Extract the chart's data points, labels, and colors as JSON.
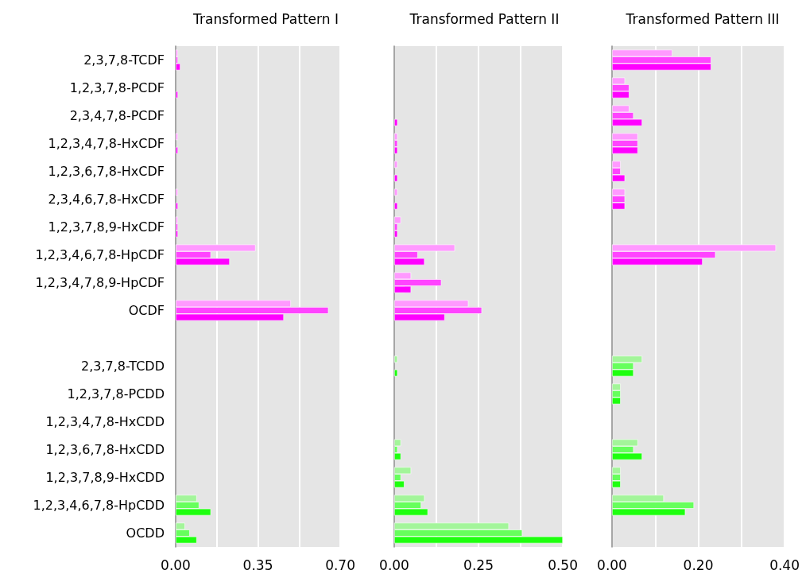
{
  "chart_data": [
    {
      "type": "bar",
      "orientation": "horizontal",
      "title": "Transformed Pattern I",
      "categories": [
        "2,3,7,8-TCDF",
        "1,2,3,7,8-PCDF",
        "2,3,4,7,8-PCDF",
        "1,2,3,4,7,8-HxCDF",
        "1,2,3,6,7,8-HxCDF",
        "2,3,4,6,7,8-HxCDF",
        "1,2,3,7,8,9-HxCDF",
        "1,2,3,4,6,7,8-HpCDF",
        "1,2,3,4,7,8,9-HpCDF",
        "OCDF",
        null,
        "2,3,7,8-TCDD",
        "1,2,3,7,8-PCDD",
        "1,2,3,4,7,8-HxCDD",
        "1,2,3,6,7,8-HxCDD",
        "1,2,3,7,8,9-HxCDD",
        "1,2,3,4,6,7,8-HpCDD",
        "OCDD"
      ],
      "series": [
        {
          "colors": [
            "#ff99ff",
            "#ff99ff",
            "#ff99ff",
            "#ff99ff",
            "#ff99ff",
            "#ff99ff",
            "#ff99ff",
            "#ff99ff",
            "#ff99ff",
            "#ff99ff",
            "#ff99ff",
            "#a3f59a",
            "#a3f59a",
            "#a3f59a",
            "#a3f59a",
            "#a3f59a",
            "#a3f59a",
            "#a3f59a"
          ],
          "values": [
            0.01,
            null,
            null,
            0.01,
            null,
            0.01,
            0.01,
            0.34,
            null,
            0.49,
            null,
            null,
            null,
            null,
            null,
            null,
            0.09,
            0.04
          ]
        },
        {
          "colors": [
            "#ff44ff",
            "#ff44ff",
            "#ff44ff",
            "#ff44ff",
            "#ff44ff",
            "#ff44ff",
            "#ff44ff",
            "#ff44ff",
            "#ff44ff",
            "#ff44ff",
            "#ff44ff",
            "#66ff5c",
            "#66ff5c",
            "#66ff5c",
            "#66ff5c",
            "#66ff5c",
            "#66ff5c",
            "#66ff5c"
          ],
          "values": [
            0.01,
            null,
            null,
            null,
            null,
            null,
            0.01,
            0.15,
            null,
            0.65,
            null,
            null,
            null,
            null,
            null,
            null,
            0.1,
            0.06
          ]
        },
        {
          "colors": [
            "#ff00ff",
            "#ff00ff",
            "#ff00ff",
            "#ff00ff",
            "#ff00ff",
            "#ff00ff",
            "#ff00ff",
            "#ff00ff",
            "#ff00ff",
            "#ff00ff",
            "#ff00ff",
            "#1eff0f",
            "#1eff0f",
            "#1eff0f",
            "#1eff0f",
            "#1eff0f",
            "#1eff0f",
            "#1eff0f"
          ],
          "values": [
            0.02,
            0.01,
            null,
            0.01,
            null,
            0.01,
            0.01,
            0.23,
            null,
            0.46,
            null,
            null,
            null,
            null,
            null,
            null,
            0.15,
            0.09
          ]
        }
      ],
      "xlim": [
        0,
        0.7
      ],
      "xticks": [
        {
          "value": 0,
          "label": "0.00"
        },
        {
          "value": 0.175,
          "label": null
        },
        {
          "value": 0.35,
          "label": "0.35"
        },
        {
          "value": 0.525,
          "label": null
        },
        {
          "value": 0.7,
          "label": "0.70"
        }
      ],
      "grid": "x"
    },
    {
      "type": "bar",
      "orientation": "horizontal",
      "title": "Transformed Pattern II",
      "categories": [
        null,
        null,
        null,
        null,
        null,
        null,
        null,
        null,
        null,
        null,
        null,
        null,
        null,
        null,
        null,
        null,
        null,
        null
      ],
      "series": [
        {
          "colors": [
            "#ff99ff",
            "#ff99ff",
            "#ff99ff",
            "#ff99ff",
            "#ff99ff",
            "#ff99ff",
            "#ff99ff",
            "#ff99ff",
            "#ff99ff",
            "#ff99ff",
            "#ff99ff",
            "#a3f59a",
            "#a3f59a",
            "#a3f59a",
            "#a3f59a",
            "#a3f59a",
            "#a3f59a",
            "#a3f59a"
          ],
          "values": [
            null,
            null,
            null,
            0.01,
            0.01,
            0.01,
            0.02,
            0.18,
            0.05,
            0.22,
            null,
            0.01,
            null,
            null,
            0.02,
            0.05,
            0.09,
            0.34
          ]
        },
        {
          "colors": [
            "#ff44ff",
            "#ff44ff",
            "#ff44ff",
            "#ff44ff",
            "#ff44ff",
            "#ff44ff",
            "#ff44ff",
            "#ff44ff",
            "#ff44ff",
            "#ff44ff",
            "#ff44ff",
            "#66ff5c",
            "#66ff5c",
            "#66ff5c",
            "#66ff5c",
            "#66ff5c",
            "#66ff5c",
            "#66ff5c"
          ],
          "values": [
            null,
            null,
            null,
            0.01,
            null,
            null,
            0.01,
            0.07,
            0.14,
            0.26,
            null,
            null,
            null,
            null,
            0.01,
            0.02,
            0.08,
            0.38
          ]
        },
        {
          "colors": [
            "#ff00ff",
            "#ff00ff",
            "#ff00ff",
            "#ff00ff",
            "#ff00ff",
            "#ff00ff",
            "#ff00ff",
            "#ff00ff",
            "#ff00ff",
            "#ff00ff",
            "#ff00ff",
            "#1eff0f",
            "#1eff0f",
            "#1eff0f",
            "#1eff0f",
            "#1eff0f",
            "#1eff0f",
            "#1eff0f"
          ],
          "values": [
            null,
            null,
            0.01,
            0.01,
            0.01,
            0.01,
            0.01,
            0.09,
            0.05,
            0.15,
            null,
            0.01,
            null,
            null,
            0.02,
            0.03,
            0.1,
            0.5
          ]
        }
      ],
      "xlim": [
        0,
        0.5
      ],
      "xticks": [
        {
          "value": 0,
          "label": "0.00"
        },
        {
          "value": 0.125,
          "label": null
        },
        {
          "value": 0.25,
          "label": "0.25"
        },
        {
          "value": 0.375,
          "label": null
        },
        {
          "value": 0.5,
          "label": "0.50"
        }
      ],
      "grid": "x",
      "tick_labels": "x"
    },
    {
      "type": "bar",
      "orientation": "horizontal",
      "title": "Transformed Pattern III",
      "categories": [
        null,
        null,
        null,
        null,
        null,
        null,
        null,
        null,
        null,
        null,
        null,
        null,
        null,
        null,
        null,
        null,
        null,
        null
      ],
      "series": [
        {
          "colors": [
            "#ff99ff",
            "#ff99ff",
            "#ff99ff",
            "#ff99ff",
            "#ff99ff",
            "#ff99ff",
            "#ff99ff",
            "#ff99ff",
            "#ff99ff",
            "#ff99ff",
            "#ff99ff",
            "#a3f59a",
            "#a3f59a",
            "#a3f59a",
            "#a3f59a",
            "#a3f59a",
            "#a3f59a",
            "#a3f59a"
          ],
          "values": [
            0.14,
            0.03,
            0.04,
            0.06,
            0.02,
            0.03,
            null,
            0.38,
            null,
            null,
            null,
            0.07,
            0.02,
            null,
            0.06,
            0.02,
            0.12,
            null
          ]
        },
        {
          "colors": [
            "#ff44ff",
            "#ff44ff",
            "#ff44ff",
            "#ff44ff",
            "#ff44ff",
            "#ff44ff",
            "#ff44ff",
            "#ff44ff",
            "#ff44ff",
            "#ff44ff",
            "#ff44ff",
            "#66ff5c",
            "#66ff5c",
            "#66ff5c",
            "#66ff5c",
            "#66ff5c",
            "#66ff5c",
            "#66ff5c"
          ],
          "values": [
            0.23,
            0.04,
            0.05,
            0.06,
            0.02,
            0.03,
            null,
            0.24,
            null,
            null,
            null,
            0.05,
            0.02,
            null,
            0.05,
            0.02,
            0.19,
            null
          ]
        },
        {
          "colors": [
            "#ff00ff",
            "#ff00ff",
            "#ff00ff",
            "#ff00ff",
            "#ff00ff",
            "#ff00ff",
            "#ff00ff",
            "#ff00ff",
            "#ff00ff",
            "#ff00ff",
            "#ff00ff",
            "#1eff0f",
            "#1eff0f",
            "#1eff0f",
            "#1eff0f",
            "#1eff0f",
            "#1eff0f",
            "#1eff0f"
          ],
          "values": [
            0.23,
            0.04,
            0.07,
            0.06,
            0.03,
            0.03,
            null,
            0.21,
            null,
            null,
            null,
            0.05,
            0.02,
            null,
            0.07,
            0.02,
            0.17,
            null
          ]
        }
      ],
      "xlim": [
        0,
        0.4
      ],
      "xticks": [
        {
          "value": 0,
          "label": "0.00"
        },
        {
          "value": 0.1,
          "label": null
        },
        {
          "value": 0.2,
          "label": "0.20"
        },
        {
          "value": 0.3,
          "label": null
        },
        {
          "value": 0.4,
          "label": "0.40"
        }
      ],
      "grid": "x",
      "tick_labels": "x"
    }
  ]
}
